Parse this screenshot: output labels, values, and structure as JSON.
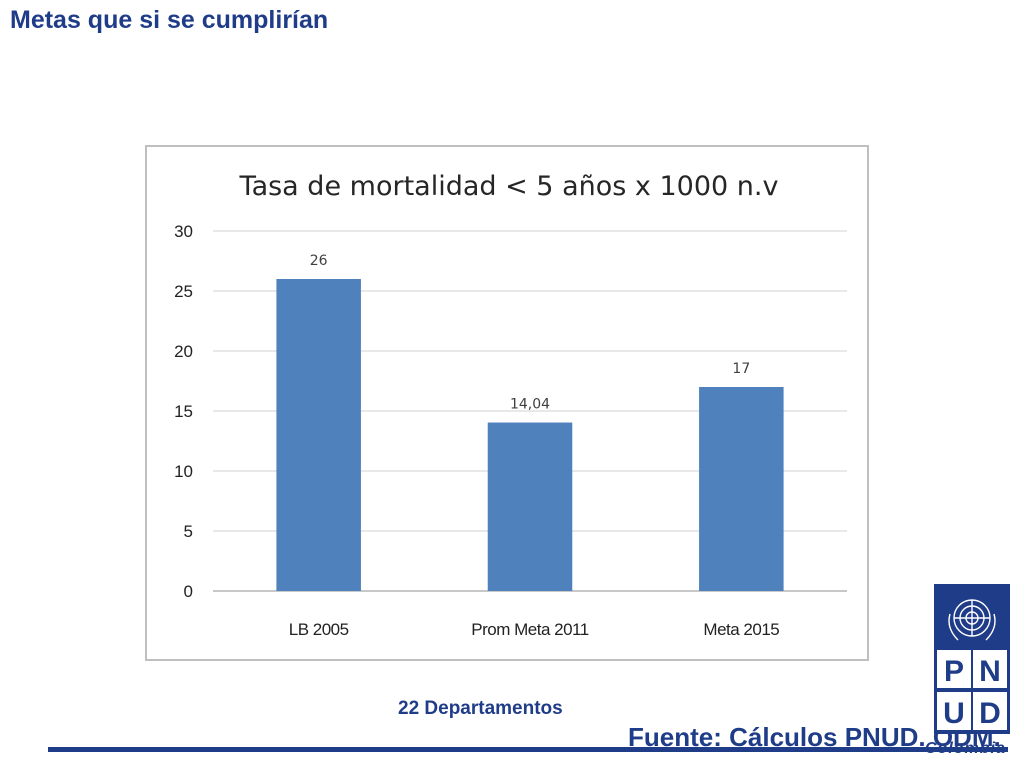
{
  "slide": {
    "title": "Metas que si se cumplirían",
    "subcaption": "22 Departamentos",
    "source": "Fuente: Cálculos PNUD. ODM.",
    "logo_text": "Colombia",
    "logo_letters": [
      "P",
      "N",
      "U",
      "D"
    ]
  },
  "colors": {
    "accent": "#1f3c88",
    "bar": "#4f81bd",
    "grid": "#d9d9d9"
  },
  "chart_data": {
    "type": "bar",
    "title": "Tasa de mortalidad < 5 años x 1000 n.v",
    "categories": [
      "LB 2005",
      "Prom Meta 2011",
      "Meta 2015"
    ],
    "values": [
      26,
      14.04,
      17
    ],
    "value_labels": [
      "26",
      "14,04",
      "17"
    ],
    "xlabel": "",
    "ylabel": "",
    "ylim": [
      0,
      30
    ],
    "yticks": [
      0,
      5,
      10,
      15,
      20,
      25,
      30
    ],
    "grid": true,
    "legend": "none"
  }
}
